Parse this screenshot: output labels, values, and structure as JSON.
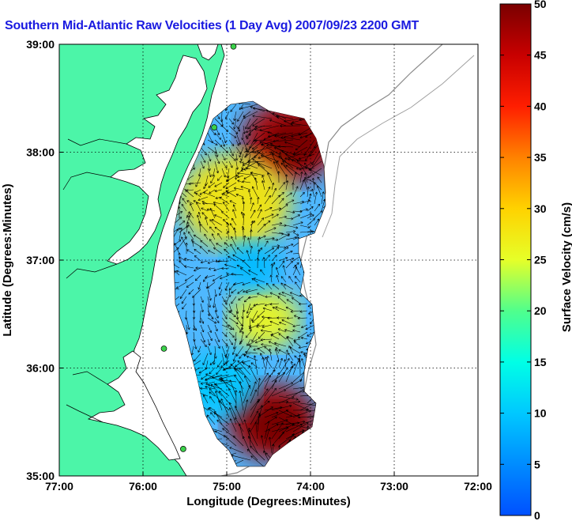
{
  "title": "Southern Mid-Atlantic Raw Velocities (1 Day Avg) 2007/09/23 2200 GMT",
  "map": {
    "xlabel": "Longitude (Degrees:Minutes)",
    "ylabel": "Latitude (Degrees:Minutes)",
    "xlim": [
      -77,
      -72
    ],
    "ylim": [
      35,
      39
    ],
    "x_ticks": [
      "77:00",
      "76:00",
      "75:00",
      "74:00",
      "73:00",
      "72:00"
    ],
    "y_ticks": [
      "35:00",
      "36:00",
      "37:00",
      "38:00",
      "39:00"
    ],
    "grid": true,
    "land_color": "#4cf5a8",
    "stations": [
      {
        "lon": -74.92,
        "lat": 38.98
      },
      {
        "lon": -75.15,
        "lat": 38.23
      },
      {
        "lon": -75.75,
        "lat": 36.18
      },
      {
        "lon": -75.52,
        "lat": 35.25
      }
    ]
  },
  "colorbar": {
    "label": "Surface Velocity (cm/s)",
    "min": 0,
    "max": 50,
    "ticks": [
      "0",
      "5",
      "10",
      "15",
      "20",
      "25",
      "30",
      "35",
      "40",
      "45",
      "50"
    ],
    "units": "cm/s"
  },
  "chart_data": {
    "type": "heatmap",
    "title": "Southern Mid-Atlantic Raw Velocities (1 Day Avg) 2007/09/23 2200 GMT",
    "xlabel": "Longitude (Degrees:Minutes)",
    "ylabel": "Latitude (Degrees:Minutes)",
    "xlim": [
      -77,
      -72
    ],
    "ylim": [
      35,
      39
    ],
    "value_label": "Surface Velocity (cm/s)",
    "value_range": [
      0,
      50
    ],
    "hotspots": [
      {
        "lon": -74.25,
        "lat": 38.1,
        "speed": 47
      },
      {
        "lon": -74.45,
        "lat": 35.5,
        "speed": 48
      },
      {
        "lon": -74.9,
        "lat": 37.55,
        "speed": 28
      },
      {
        "lon": -74.55,
        "lat": 36.45,
        "speed": 26
      },
      {
        "lon": -75.1,
        "lat": 35.85,
        "speed": 10
      },
      {
        "lon": -74.7,
        "lat": 36.95,
        "speed": 9
      }
    ]
  }
}
